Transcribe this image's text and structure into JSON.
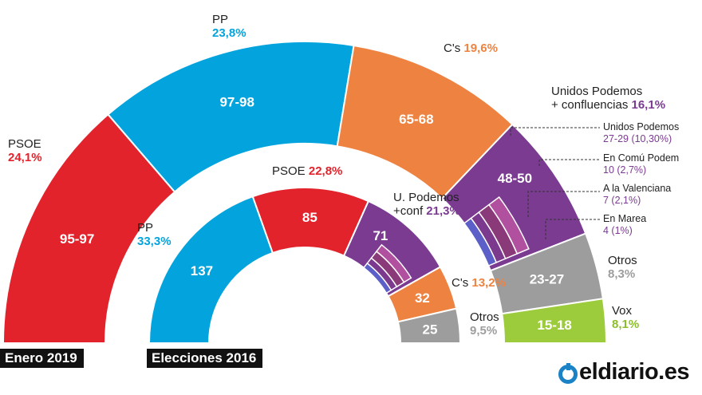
{
  "colors": {
    "psoe": "#e2232b",
    "pp": "#03a4de",
    "cs": "#ee8341",
    "up": "#7a3b91",
    "otros": "#9d9d9d",
    "vox": "#9ccb3b"
  },
  "chart_data": [
    {
      "type": "semicircle",
      "title": "Enero 2019",
      "segments": [
        {
          "party": "PSOE",
          "seats": "95-97",
          "pct": "24,1%",
          "value": 96,
          "color": "#e2232b"
        },
        {
          "party": "PP",
          "seats": "97-98",
          "pct": "23,8%",
          "value": 97.5,
          "color": "#03a4de"
        },
        {
          "party": "C's",
          "seats": "65-68",
          "pct": "19,6%",
          "value": 66.5,
          "color": "#ee8341"
        },
        {
          "party": "Unidos Podemos + confluencias",
          "seats": "48-50",
          "pct": "16,1%",
          "value": 49,
          "color": "#7a3b91",
          "sub": [
            {
              "name": "Unidos Podemos",
              "seats": "27-29",
              "pct": "10,30%"
            },
            {
              "name": "En Comú Podem",
              "seats": "10",
              "pct": "2,7%"
            },
            {
              "name": "A la Valenciana",
              "seats": "7",
              "pct": "2,1%"
            },
            {
              "name": "En Marea",
              "seats": "4",
              "pct": "1%"
            }
          ]
        },
        {
          "party": "Otros",
          "seats": "23-27",
          "pct": "8,3%",
          "value": 25,
          "color": "#9d9d9d"
        },
        {
          "party": "Vox",
          "seats": "15-18",
          "pct": "8,1%",
          "value": 16.5,
          "color": "#9ccb3b"
        }
      ]
    },
    {
      "type": "semicircle",
      "title": "Elecciones 2016",
      "segments": [
        {
          "party": "PP",
          "seats": "137",
          "pct": "33,3%",
          "value": 137,
          "color": "#03a4de"
        },
        {
          "party": "PSOE",
          "seats": "85",
          "pct": "22,8%",
          "value": 85,
          "color": "#e2232b"
        },
        {
          "party": "U. Podemos +conf",
          "seats": "71",
          "pct": "21,3%",
          "value": 71,
          "color": "#7a3b91"
        },
        {
          "party": "C's",
          "seats": "32",
          "pct": "13,2%",
          "value": 32,
          "color": "#ee8341"
        },
        {
          "party": "Otros",
          "seats": "25",
          "pct": "9,5%",
          "value": 25,
          "color": "#9d9d9d"
        }
      ]
    }
  ],
  "labels": {
    "outer": {
      "psoe_name": "PSOE",
      "psoe_pct": "24,1%",
      "pp_name": "PP",
      "pp_pct": "23,8%",
      "cs_name": "C's",
      "cs_pct": "19,6%",
      "up_name1": "Unidos Podemos",
      "up_name2": "+ confluencias",
      "up_pct": "16,1%",
      "otros_name": "Otros",
      "otros_pct": "8,3%",
      "vox_name": "Vox",
      "vox_pct": "8,1%"
    },
    "sub": {
      "s1_name": "Unidos Podemos",
      "s1_val": "27-29 (10,30%)",
      "s2_name": "En Comú Podem",
      "s2_val": "10 (2,7%)",
      "s3_name": "A la Valenciana",
      "s3_val": "7 (2,1%)",
      "s4_name": "En Marea",
      "s4_val": "4 (1%)"
    },
    "inner": {
      "pp_name": "PP",
      "pp_pct": "33,3%",
      "psoe_name": "PSOE",
      "psoe_pct": "22,8%",
      "up_name1": "U. Podemos",
      "up_name2": "+conf",
      "up_pct": "21,3%",
      "cs_name": "C's",
      "cs_pct": "13,2%",
      "otros_name": "Otros",
      "otros_pct": "9,5%"
    },
    "tag_outer": "Enero 2019",
    "tag_inner": "Elecciones 2016",
    "logo_text": "eldiario.es"
  }
}
